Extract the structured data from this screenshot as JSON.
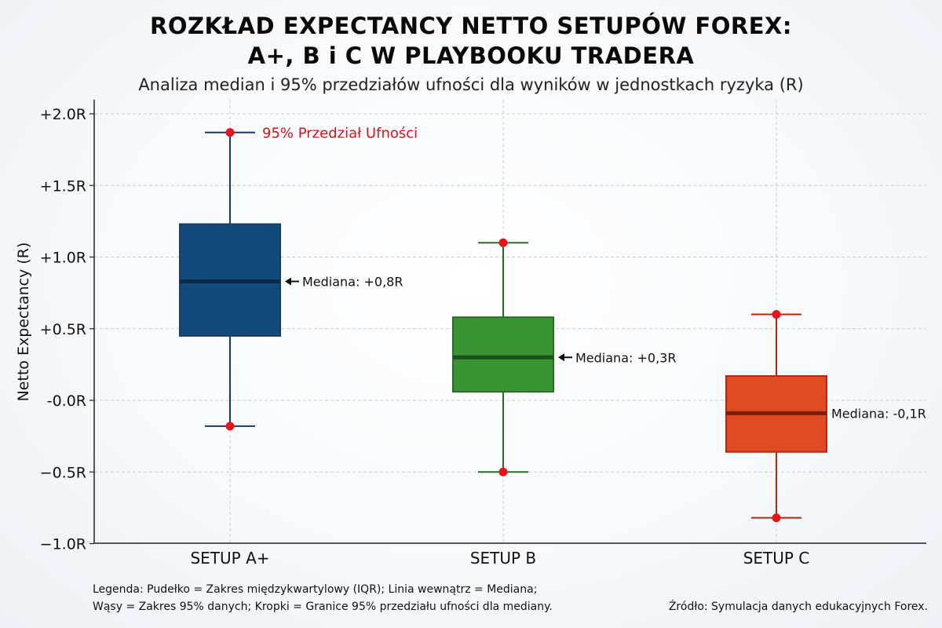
{
  "title_line1": "ROZKŁAD EXPECTANCY NETTO SETUPÓW FOREX:",
  "title_line2": "A+, B i C W PLAYBOOKU TRADERA",
  "subtitle": "Analiza median i 95% przedziałów ufności dla wyników w jednostkach ryzyka (R)",
  "footer": {
    "legend_line1": "Legenda: Pudełko = Zakres międzykwartylowy (IQR); Linia wewnątrz = Mediana;",
    "legend_line2": "Wąsy = Zakres 95% danych; Kropki = Granice 95% przedziału ufności dla mediany.",
    "source": "Źródło: Symulacja danych edukacyjnych Forex."
  },
  "chart_data": {
    "type": "box",
    "ylabel": "Netto Expectancy (R)",
    "ylim": [
      -1.0,
      2.1
    ],
    "yticks": [
      {
        "value": 2.0,
        "label": "+2.0R"
      },
      {
        "value": 1.5,
        "label": "+1.5R"
      },
      {
        "value": 1.0,
        "label": "+1.0R"
      },
      {
        "value": 0.5,
        "label": "+0.5R"
      },
      {
        "value": 0.0,
        "label": "-0.0R"
      },
      {
        "value": -0.5,
        "label": "−0.5R"
      },
      {
        "value": -1.0,
        "label": "−1.0R"
      }
    ],
    "grid": true,
    "categories": [
      "SETUP A+",
      "SETUP B",
      "SETUP C"
    ],
    "boxes": [
      {
        "category": "SETUP A+",
        "whisker_low": -0.18,
        "q1": 0.45,
        "median": 0.83,
        "q3": 1.23,
        "whisker_high": 1.87,
        "color": "#134a7c",
        "median_color": "#0a2a47",
        "line_color": "#1b3b5c",
        "median_label": "Mediana: +0,8R"
      },
      {
        "category": "SETUP B",
        "whisker_low": -0.5,
        "q1": 0.06,
        "median": 0.3,
        "q3": 0.58,
        "whisker_high": 1.1,
        "color": "#3b9434",
        "median_color": "#1f4f1b",
        "line_color": "#2a6b25",
        "median_label": "Mediana: +0,3R"
      },
      {
        "category": "SETUP C",
        "whisker_low": -0.82,
        "q1": -0.36,
        "median": -0.09,
        "q3": 0.17,
        "whisker_high": 0.6,
        "color": "#e04a22",
        "median_color": "#7a1e08",
        "line_color": "#b02a12",
        "median_label": "Mediana: -0,1R"
      }
    ],
    "ci_dot_color": "#e8141b",
    "annotation": {
      "text": "95% Przedział Ufności",
      "color": "#d8131b"
    }
  }
}
